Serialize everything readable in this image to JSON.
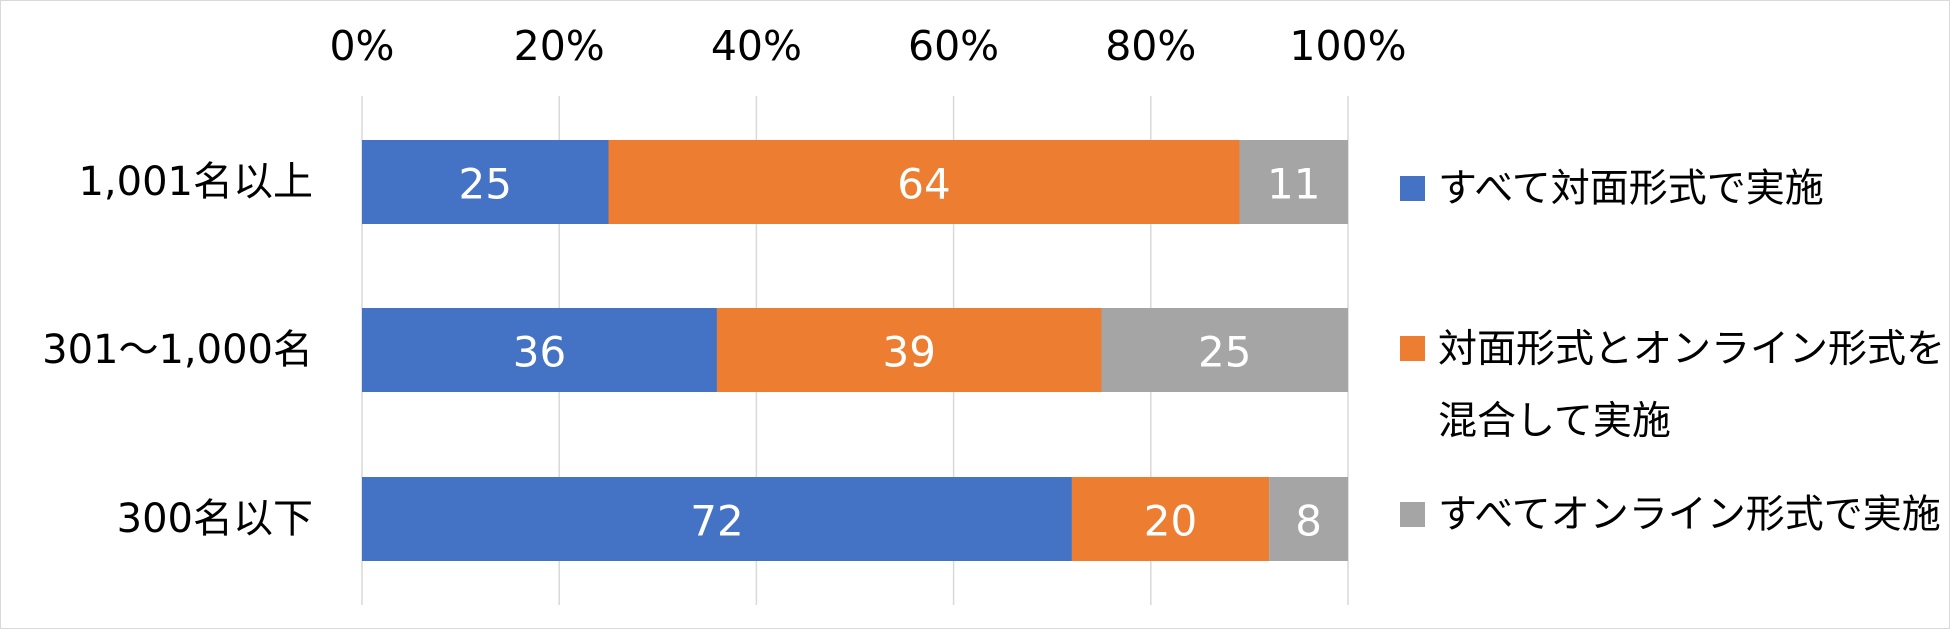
{
  "chart_data": {
    "type": "bar",
    "orientation": "horizontal",
    "stacked": true,
    "categories": [
      "1,001名以上",
      "301〜1,000名",
      "300名以下"
    ],
    "series": [
      {
        "name": "すべて対面形式で実施",
        "values": [
          25,
          36,
          72
        ],
        "color": "#4472c4"
      },
      {
        "name": "対面形式とオンライン形式を混合して実施",
        "legend_lines": [
          "対面形式とオンライン形式を",
          "混合して実施"
        ],
        "values": [
          64,
          39,
          20
        ],
        "color": "#ed7d31"
      },
      {
        "name": "すべてオンライン形式で実施",
        "values": [
          11,
          25,
          8
        ],
        "color": "#a5a5a5"
      }
    ],
    "x_ticks": [
      "0%",
      "20%",
      "40%",
      "60%",
      "80%",
      "100%"
    ],
    "xlim": [
      0,
      100
    ],
    "grid": true,
    "legend_position": "right",
    "data_label_color": "#ffffff",
    "title": "",
    "xlabel": "",
    "ylabel": ""
  }
}
